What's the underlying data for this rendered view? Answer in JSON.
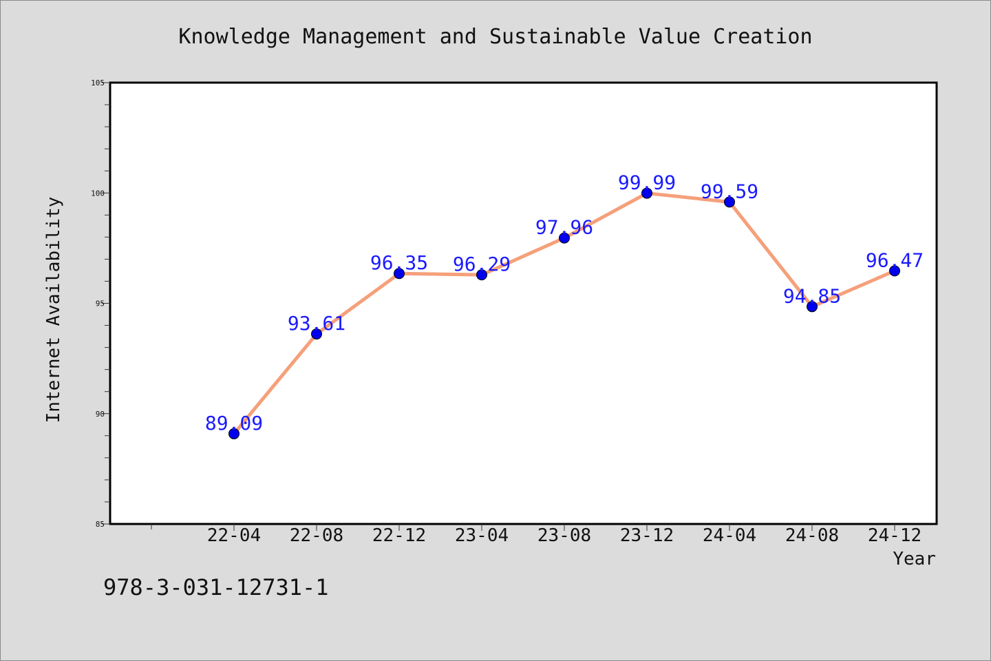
{
  "chart_data": {
    "type": "line",
    "title": "Knowledge Management and Sustainable Value Creation",
    "xlabel": "Year",
    "ylabel": "Internet Availability",
    "categories": [
      "22-04",
      "22-08",
      "22-12",
      "23-04",
      "23-08",
      "23-12",
      "24-04",
      "24-08",
      "24-12"
    ],
    "series": [
      {
        "values": [
          89.09,
          93.61,
          96.35,
          96.29,
          97.96,
          99.99,
          99.59,
          94.85,
          96.47
        ],
        "labels": [
          "89.09",
          "93.61",
          "96.35",
          "96.29",
          "97.96",
          "99.99",
          "99.59",
          "94.85",
          "96.47"
        ],
        "line_color": "#f5a07a",
        "marker_color": "#0000ee",
        "label_color": "#1a1aff"
      }
    ],
    "ylim": [
      85,
      105
    ],
    "yticks": [
      85,
      90,
      95,
      100,
      105
    ],
    "grid": false,
    "legend": "none"
  },
  "footer": {
    "text": "978-3-031-12731-1"
  }
}
